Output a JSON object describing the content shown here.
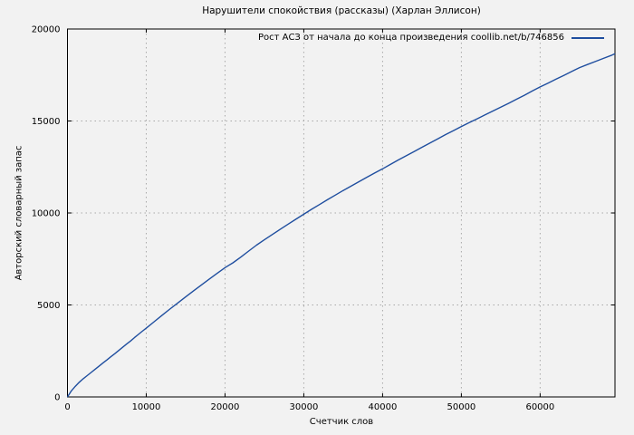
{
  "title": "Нарушители спокойствия (рассказы) (Харлан Эллисон)",
  "colors": {
    "background": "#f2f2f2",
    "line": "#1f4e9f",
    "grid": "#a9a9a9",
    "border": "#000000",
    "text": "#000000"
  },
  "chart_data": {
    "type": "line",
    "title": "Нарушители спокойствия (рассказы) (Харлан Эллисон)",
    "xlabel": "Счетчик слов",
    "ylabel": "Авторский словарный запас",
    "xlim": [
      0,
      69500
    ],
    "ylim": [
      0,
      20000
    ],
    "xticks": [
      0,
      10000,
      20000,
      30000,
      40000,
      50000,
      60000
    ],
    "yticks": [
      0,
      5000,
      10000,
      15000,
      20000
    ],
    "grid": true,
    "legend_position": "top-right",
    "series": [
      {
        "name": "Рост АСЗ от начала до конца произведения coollib.net/b/746856",
        "color": "#1f4e9f",
        "points": [
          [
            0,
            0
          ],
          [
            500,
            330
          ],
          [
            1000,
            580
          ],
          [
            1500,
            800
          ],
          [
            2000,
            990
          ],
          [
            2500,
            1160
          ],
          [
            3000,
            1330
          ],
          [
            3500,
            1500
          ],
          [
            4000,
            1670
          ],
          [
            4500,
            1840
          ],
          [
            5000,
            2010
          ],
          [
            5500,
            2180
          ],
          [
            6000,
            2350
          ],
          [
            6500,
            2520
          ],
          [
            7000,
            2700
          ],
          [
            7500,
            2870
          ],
          [
            8000,
            3040
          ],
          [
            8500,
            3220
          ],
          [
            9000,
            3400
          ],
          [
            9500,
            3570
          ],
          [
            10000,
            3740
          ],
          [
            11000,
            4090
          ],
          [
            12000,
            4440
          ],
          [
            13000,
            4780
          ],
          [
            14000,
            5110
          ],
          [
            15000,
            5440
          ],
          [
            16000,
            5770
          ],
          [
            17000,
            6090
          ],
          [
            18000,
            6410
          ],
          [
            19000,
            6720
          ],
          [
            20000,
            7030
          ],
          [
            21000,
            7290
          ],
          [
            22000,
            7600
          ],
          [
            23000,
            7930
          ],
          [
            24000,
            8250
          ],
          [
            25000,
            8540
          ],
          [
            26000,
            8830
          ],
          [
            27000,
            9110
          ],
          [
            28000,
            9390
          ],
          [
            29000,
            9660
          ],
          [
            30000,
            9930
          ],
          [
            31000,
            10200
          ],
          [
            32000,
            10460
          ],
          [
            33000,
            10720
          ],
          [
            34000,
            10970
          ],
          [
            35000,
            11220
          ],
          [
            36000,
            11460
          ],
          [
            37000,
            11700
          ],
          [
            38000,
            11940
          ],
          [
            39000,
            12170
          ],
          [
            40000,
            12400
          ],
          [
            41000,
            12640
          ],
          [
            42000,
            12880
          ],
          [
            43000,
            13110
          ],
          [
            44000,
            13340
          ],
          [
            45000,
            13570
          ],
          [
            46000,
            13800
          ],
          [
            47000,
            14030
          ],
          [
            48000,
            14260
          ],
          [
            49000,
            14480
          ],
          [
            50000,
            14700
          ],
          [
            51000,
            14910
          ],
          [
            52000,
            15120
          ],
          [
            53000,
            15330
          ],
          [
            54000,
            15540
          ],
          [
            55000,
            15750
          ],
          [
            56000,
            15960
          ],
          [
            57000,
            16180
          ],
          [
            58000,
            16400
          ],
          [
            59000,
            16630
          ],
          [
            60000,
            16850
          ],
          [
            61000,
            17060
          ],
          [
            62000,
            17270
          ],
          [
            63000,
            17480
          ],
          [
            64000,
            17690
          ],
          [
            64500,
            17800
          ],
          [
            65000,
            17900
          ],
          [
            66000,
            18070
          ],
          [
            67000,
            18230
          ],
          [
            68000,
            18400
          ],
          [
            69000,
            18560
          ],
          [
            69500,
            18660
          ]
        ]
      }
    ]
  },
  "legend": {
    "label": "Рост АСЗ от начала до конца произведения coollib.net/b/746856"
  }
}
